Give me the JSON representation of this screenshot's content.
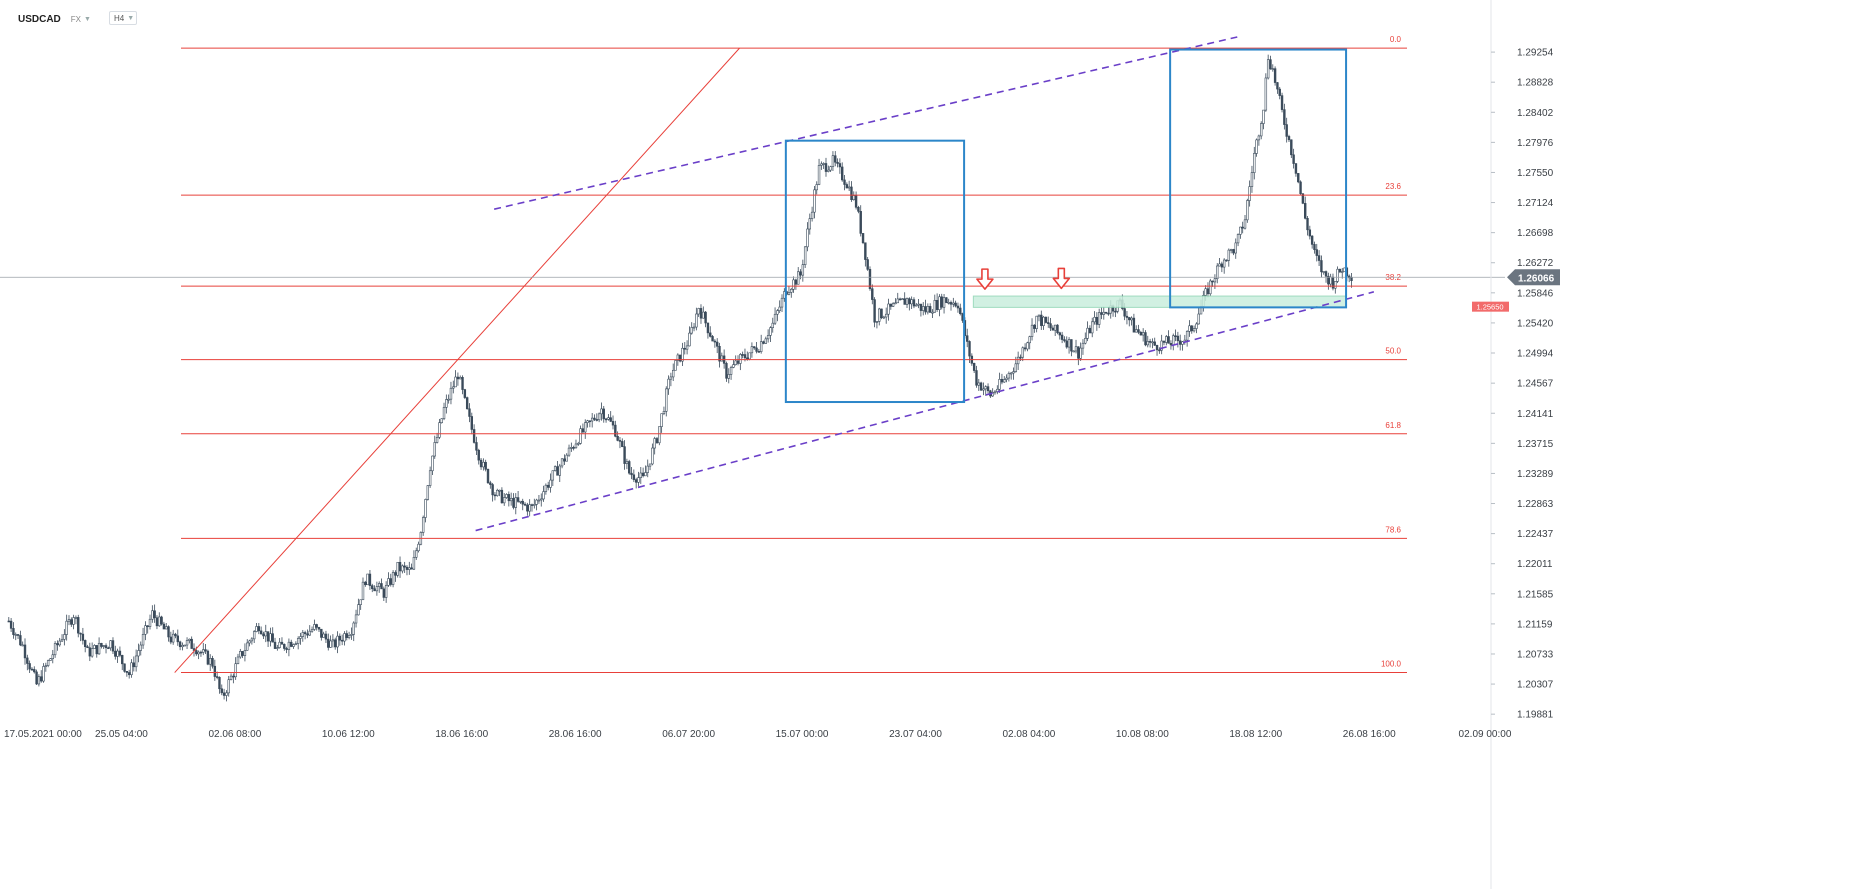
{
  "toolbar": {
    "symbol": "USDCAD",
    "market": "FX",
    "timeframe": "H4",
    "caret_icon": "chevron-down-icon"
  },
  "colors": {
    "background": "#ffffff",
    "fib_line": "#e8403a",
    "fib_label": "#e8403a",
    "channel": "#6a3fc8",
    "box": "#2c86c9",
    "zone_fill": "#c9eedd",
    "zone_stroke": "#8fd5b4",
    "arrow": "#e8403a",
    "candle": "#3a4a5a",
    "current_price_line": "#9aa0a6",
    "price_tag": "#6b7580",
    "zone_tag": "#f26b6b",
    "axis_text": "#3a3f45"
  },
  "chart_data": {
    "type": "candlestick",
    "instrument": "USDCAD",
    "timeframe": "H4",
    "ylim": [
      1.1977,
      1.2985
    ],
    "y_ticks": [
      "1.29254",
      "1.28828",
      "1.28402",
      "1.27976",
      "1.27550",
      "1.27124",
      "1.26698",
      "1.26272",
      "1.25846",
      "1.25420",
      "1.24994",
      "1.24567",
      "1.24141",
      "1.23715",
      "1.23289",
      "1.22863",
      "1.22437",
      "1.22011",
      "1.21585",
      "1.21159",
      "1.20733",
      "1.20307",
      "1.19881"
    ],
    "x_ticks": [
      {
        "label": "17.05.2021  00:00",
        "bar": 0
      },
      {
        "label": "25.05  04:00",
        "bar": 49
      },
      {
        "label": "02.06  08:00",
        "bar": 98
      },
      {
        "label": "10.06  12:00",
        "bar": 147
      },
      {
        "label": "18.06  16:00",
        "bar": 196
      },
      {
        "label": "28.06  16:00",
        "bar": 245
      },
      {
        "label": "06.07  20:00",
        "bar": 294
      },
      {
        "label": "15.07  00:00",
        "bar": 343
      },
      {
        "label": "23.07  04:00",
        "bar": 392
      },
      {
        "label": "02.08  04:00",
        "bar": 441
      },
      {
        "label": "10.08  08:00",
        "bar": 490
      },
      {
        "label": "18.08  12:00",
        "bar": 539
      },
      {
        "label": "26.08  16:00",
        "bar": 588
      },
      {
        "label": "02.09  00:00",
        "bar": 638
      }
    ],
    "current_price": "1.26066",
    "close_path": [
      [
        0,
        1.212
      ],
      [
        6,
        1.2085
      ],
      [
        12,
        1.203
      ],
      [
        20,
        1.208
      ],
      [
        28,
        1.213
      ],
      [
        34,
        1.2075
      ],
      [
        44,
        1.209
      ],
      [
        52,
        1.2045
      ],
      [
        62,
        1.213
      ],
      [
        70,
        1.2095
      ],
      [
        80,
        1.2085
      ],
      [
        88,
        1.206
      ],
      [
        92,
        1.201
      ],
      [
        100,
        1.207
      ],
      [
        108,
        1.2115
      ],
      [
        116,
        1.208
      ],
      [
        124,
        1.2095
      ],
      [
        132,
        1.211
      ],
      [
        140,
        1.2085
      ],
      [
        148,
        1.211
      ],
      [
        154,
        1.218
      ],
      [
        162,
        1.216
      ],
      [
        168,
        1.2195
      ],
      [
        174,
        1.219
      ],
      [
        178,
        1.225
      ],
      [
        182,
        1.234
      ],
      [
        188,
        1.242
      ],
      [
        194,
        1.247
      ],
      [
        198,
        1.2415
      ],
      [
        204,
        1.2345
      ],
      [
        210,
        1.23
      ],
      [
        216,
        1.229
      ],
      [
        226,
        1.228
      ],
      [
        236,
        1.233
      ],
      [
        246,
        1.238
      ],
      [
        256,
        1.242
      ],
      [
        262,
        1.239
      ],
      [
        268,
        1.233
      ],
      [
        274,
        1.232
      ],
      [
        280,
        1.238
      ],
      [
        286,
        1.247
      ],
      [
        294,
        1.252
      ],
      [
        298,
        1.2565
      ],
      [
        304,
        1.252
      ],
      [
        310,
        1.247
      ],
      [
        316,
        1.249
      ],
      [
        324,
        1.251
      ],
      [
        330,
        1.254
      ],
      [
        336,
        1.259
      ],
      [
        342,
        1.261
      ],
      [
        346,
        1.269
      ],
      [
        350,
        1.276
      ],
      [
        356,
        1.277
      ],
      [
        362,
        1.274
      ],
      [
        366,
        1.271
      ],
      [
        370,
        1.264
      ],
      [
        374,
        1.255
      ],
      [
        380,
        1.256
      ],
      [
        388,
        1.2575
      ],
      [
        396,
        1.256
      ],
      [
        404,
        1.2575
      ],
      [
        410,
        1.257
      ],
      [
        414,
        1.251
      ],
      [
        418,
        1.246
      ],
      [
        424,
        1.244
      ],
      [
        430,
        1.246
      ],
      [
        436,
        1.249
      ],
      [
        440,
        1.252
      ],
      [
        444,
        1.255
      ],
      [
        448,
        1.254
      ],
      [
        456,
        1.252
      ],
      [
        462,
        1.25
      ],
      [
        468,
        1.254
      ],
      [
        474,
        1.256
      ],
      [
        480,
        1.257
      ],
      [
        486,
        1.2535
      ],
      [
        494,
        1.251
      ],
      [
        502,
        1.2515
      ],
      [
        508,
        1.252
      ],
      [
        512,
        1.254
      ],
      [
        518,
        1.259
      ],
      [
        524,
        1.263
      ],
      [
        530,
        1.265
      ],
      [
        534,
        1.269
      ],
      [
        538,
        1.278
      ],
      [
        542,
        1.285
      ],
      [
        544,
        1.292
      ],
      [
        546,
        1.29
      ],
      [
        550,
        1.284
      ],
      [
        556,
        1.276
      ],
      [
        560,
        1.269
      ],
      [
        564,
        1.264
      ],
      [
        568,
        1.261
      ],
      [
        572,
        1.26
      ],
      [
        576,
        1.262
      ],
      [
        580,
        1.261
      ]
    ],
    "fibonacci": [
      {
        "level": "0.0",
        "price": 1.2931
      },
      {
        "level": "23.6",
        "price": 1.2723
      },
      {
        "level": "38.2",
        "price": 1.2594
      },
      {
        "level": "50.0",
        "price": 1.249
      },
      {
        "level": "61.8",
        "price": 1.2385
      },
      {
        "level": "78.6",
        "price": 1.2237
      },
      {
        "level": "100.0",
        "price": 1.2047
      }
    ],
    "fib_trendline": {
      "from": [
        72,
        1.2047
      ],
      "to": [
        316,
        1.2931
      ]
    },
    "channel_upper": {
      "from": [
        210,
        1.2703
      ],
      "to": [
        531,
        1.29468
      ]
    },
    "channel_lower": {
      "from": [
        202,
        1.2248
      ],
      "to": [
        590,
        1.2586
      ]
    },
    "boxes": [
      {
        "from": [
          336,
          1.28
        ],
        "to": [
          413,
          1.243
        ]
      },
      {
        "from": [
          502,
          1.2929
        ],
        "to": [
          578,
          1.2564
        ]
      }
    ],
    "zone": {
      "from": [
        417,
        1.258
      ],
      "to": [
        578,
        1.2564
      ],
      "label": "1.25650"
    },
    "arrows": [
      [
        422,
        1.2604
      ],
      [
        455,
        1.2605
      ]
    ]
  }
}
